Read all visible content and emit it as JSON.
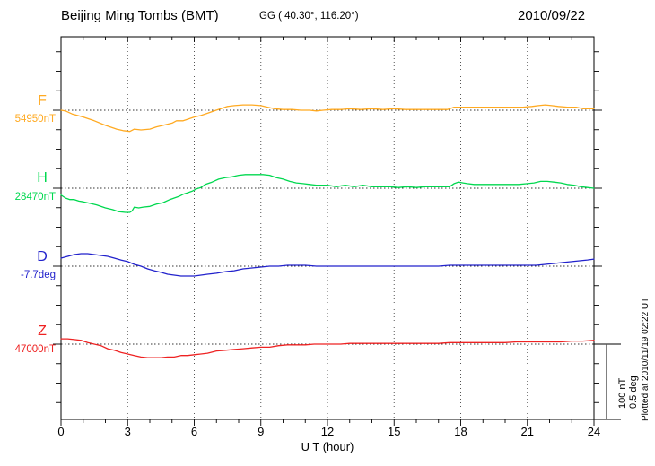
{
  "header": {
    "station_title": "Beijing Ming Tombs (BMT)",
    "coords": "GG ( 40.30°, 116.20°)",
    "date": "2010/09/22"
  },
  "axes": {
    "x_label": "U T (hour)",
    "x_ticks": [
      "0",
      "3",
      "6",
      "9",
      "12",
      "15",
      "18",
      "21",
      "24"
    ]
  },
  "scale_bar": {
    "line1": "100 nT",
    "line2": "0.5 deg"
  },
  "footer_note": "Plotted at 2010/11/19 02:22 UT",
  "chart_data": {
    "type": "line",
    "title": "Beijing Ming Tombs (BMT) magnetogram, 2010/09/22",
    "xlabel": "U T (hour)",
    "x_range": [
      0,
      24
    ],
    "x_tick_step_hours": 3,
    "grid": "dotted vertical at 3h steps, dotted horizontal baseline per channel",
    "division_scale": {
      "nT_per_division": 100,
      "deg_per_division": 0.5
    },
    "series": [
      {
        "name": "F",
        "unit": "nT",
        "base_value": 54950,
        "base_label": "54950nT",
        "color": "#FFAA22",
        "points": [
          [
            0,
            0
          ],
          [
            0.2,
            -1
          ],
          [
            0.5,
            -5
          ],
          [
            1,
            -9
          ],
          [
            1.5,
            -14
          ],
          [
            2,
            -20
          ],
          [
            2.5,
            -25
          ],
          [
            2.8,
            -27
          ],
          [
            3.1,
            -28
          ],
          [
            3.3,
            -25
          ],
          [
            3.6,
            -26
          ],
          [
            4,
            -25
          ],
          [
            4.3,
            -22
          ],
          [
            4.6,
            -20
          ],
          [
            5,
            -17
          ],
          [
            5.2,
            -14
          ],
          [
            5.5,
            -14
          ],
          [
            5.7,
            -12
          ],
          [
            6,
            -9
          ],
          [
            6.3,
            -7
          ],
          [
            6.6,
            -4
          ],
          [
            6.9,
            -1
          ],
          [
            7.2,
            2
          ],
          [
            7.5,
            5
          ],
          [
            7.8,
            6
          ],
          [
            8.2,
            7
          ],
          [
            8.6,
            7
          ],
          [
            9,
            6
          ],
          [
            9.3,
            4
          ],
          [
            9.6,
            2
          ],
          [
            10,
            1
          ],
          [
            10.4,
            1
          ],
          [
            10.8,
            0
          ],
          [
            11.2,
            0
          ],
          [
            11.5,
            -1
          ],
          [
            11.8,
            0
          ],
          [
            12.2,
            1
          ],
          [
            12.6,
            1
          ],
          [
            13,
            2
          ],
          [
            13.5,
            1
          ],
          [
            14,
            2
          ],
          [
            14.5,
            1
          ],
          [
            15,
            2
          ],
          [
            15.5,
            1
          ],
          [
            16,
            1
          ],
          [
            16.5,
            1
          ],
          [
            17,
            1
          ],
          [
            17.4,
            1
          ],
          [
            17.7,
            4
          ],
          [
            18,
            4
          ],
          [
            18.4,
            4
          ],
          [
            18.8,
            4
          ],
          [
            19.2,
            4
          ],
          [
            19.6,
            4
          ],
          [
            20,
            4
          ],
          [
            20.4,
            4
          ],
          [
            20.8,
            4
          ],
          [
            21.2,
            5
          ],
          [
            21.5,
            6
          ],
          [
            21.8,
            7
          ],
          [
            22.1,
            6
          ],
          [
            22.4,
            5
          ],
          [
            22.8,
            4
          ],
          [
            23.2,
            4
          ],
          [
            23.5,
            2
          ],
          [
            23.8,
            2
          ],
          [
            24,
            2
          ]
        ]
      },
      {
        "name": "H",
        "unit": "nT",
        "base_value": 28470,
        "base_label": "28470nT",
        "color": "#00D84F",
        "points": [
          [
            0,
            -9
          ],
          [
            0.2,
            -13
          ],
          [
            0.4,
            -15
          ],
          [
            0.6,
            -15
          ],
          [
            0.8,
            -17
          ],
          [
            1,
            -18
          ],
          [
            1.3,
            -20
          ],
          [
            1.6,
            -22
          ],
          [
            2,
            -26
          ],
          [
            2.3,
            -28
          ],
          [
            2.6,
            -31
          ],
          [
            2.9,
            -32
          ],
          [
            3.1,
            -32
          ],
          [
            3.2,
            -30
          ],
          [
            3.3,
            -25
          ],
          [
            3.5,
            -26
          ],
          [
            3.7,
            -25
          ],
          [
            4,
            -24
          ],
          [
            4.3,
            -21
          ],
          [
            4.6,
            -19
          ],
          [
            4.9,
            -15
          ],
          [
            5.1,
            -13
          ],
          [
            5.3,
            -11
          ],
          [
            5.5,
            -8
          ],
          [
            5.7,
            -6
          ],
          [
            5.9,
            -4
          ],
          [
            6.1,
            -1
          ],
          [
            6.3,
            1
          ],
          [
            6.5,
            5
          ],
          [
            6.8,
            8
          ],
          [
            7.1,
            12
          ],
          [
            7.4,
            14
          ],
          [
            7.7,
            15
          ],
          [
            8,
            17
          ],
          [
            8.3,
            18
          ],
          [
            8.7,
            18
          ],
          [
            9.1,
            18
          ],
          [
            9.4,
            17
          ],
          [
            9.7,
            14
          ],
          [
            10,
            12
          ],
          [
            10.3,
            9
          ],
          [
            10.6,
            7
          ],
          [
            10.9,
            6
          ],
          [
            11.2,
            5
          ],
          [
            11.5,
            4
          ],
          [
            12,
            4
          ],
          [
            12.4,
            2
          ],
          [
            12.8,
            4
          ],
          [
            13.2,
            2
          ],
          [
            13.6,
            4
          ],
          [
            14,
            2
          ],
          [
            14.4,
            2
          ],
          [
            14.8,
            2
          ],
          [
            15.2,
            1
          ],
          [
            15.6,
            2
          ],
          [
            16,
            1
          ],
          [
            16.4,
            2
          ],
          [
            16.8,
            2
          ],
          [
            17.2,
            2
          ],
          [
            17.5,
            2
          ],
          [
            17.7,
            6
          ],
          [
            17.9,
            8
          ],
          [
            18.1,
            7
          ],
          [
            18.3,
            6
          ],
          [
            18.6,
            5
          ],
          [
            19,
            5
          ],
          [
            19.4,
            5
          ],
          [
            19.8,
            5
          ],
          [
            20.2,
            5
          ],
          [
            20.6,
            5
          ],
          [
            21,
            6
          ],
          [
            21.3,
            7
          ],
          [
            21.6,
            9
          ],
          [
            21.9,
            9
          ],
          [
            22.2,
            8
          ],
          [
            22.5,
            7
          ],
          [
            22.8,
            5
          ],
          [
            23.1,
            4
          ],
          [
            23.4,
            2
          ],
          [
            23.7,
            1
          ],
          [
            24,
            0
          ]
        ]
      },
      {
        "name": "D",
        "unit": "deg",
        "base_value": -7.7,
        "base_label": "-7.7deg",
        "color": "#2222CC",
        "points": [
          [
            0,
            0.053
          ],
          [
            0.3,
            0.065
          ],
          [
            0.6,
            0.077
          ],
          [
            0.9,
            0.083
          ],
          [
            1.2,
            0.083
          ],
          [
            1.5,
            0.077
          ],
          [
            1.8,
            0.071
          ],
          [
            2.1,
            0.065
          ],
          [
            2.4,
            0.053
          ],
          [
            2.7,
            0.041
          ],
          [
            3,
            0.03
          ],
          [
            3.3,
            0.012
          ],
          [
            3.6,
            0
          ],
          [
            3.9,
            -0.018
          ],
          [
            4.2,
            -0.03
          ],
          [
            4.5,
            -0.041
          ],
          [
            4.8,
            -0.053
          ],
          [
            5.1,
            -0.059
          ],
          [
            5.4,
            -0.065
          ],
          [
            5.7,
            -0.065
          ],
          [
            6,
            -0.065
          ],
          [
            6.3,
            -0.059
          ],
          [
            6.6,
            -0.053
          ],
          [
            7,
            -0.047
          ],
          [
            7.4,
            -0.036
          ],
          [
            7.8,
            -0.03
          ],
          [
            8.2,
            -0.018
          ],
          [
            8.6,
            -0.012
          ],
          [
            9,
            -0.006
          ],
          [
            9.4,
            0
          ],
          [
            9.8,
            0
          ],
          [
            10.2,
            0.006
          ],
          [
            10.6,
            0.006
          ],
          [
            11,
            0.006
          ],
          [
            11.5,
            0
          ],
          [
            12,
            0
          ],
          [
            12.5,
            0
          ],
          [
            13,
            0
          ],
          [
            13.5,
            0
          ],
          [
            14,
            0
          ],
          [
            14.5,
            0
          ],
          [
            15,
            0
          ],
          [
            15.5,
            0
          ],
          [
            16,
            0
          ],
          [
            16.5,
            0
          ],
          [
            17,
            0
          ],
          [
            17.5,
            0.006
          ],
          [
            18,
            0.006
          ],
          [
            18.5,
            0.006
          ],
          [
            19,
            0.006
          ],
          [
            19.5,
            0.006
          ],
          [
            20,
            0.006
          ],
          [
            20.5,
            0.006
          ],
          [
            21,
            0.006
          ],
          [
            21.4,
            0.006
          ],
          [
            21.8,
            0.012
          ],
          [
            22.2,
            0.018
          ],
          [
            22.6,
            0.024
          ],
          [
            23,
            0.03
          ],
          [
            23.4,
            0.036
          ],
          [
            23.7,
            0.041
          ],
          [
            24,
            0.047
          ]
        ]
      },
      {
        "name": "Z",
        "unit": "nT",
        "base_value": 47000,
        "base_label": "47000nT",
        "color": "#EE2222",
        "points": [
          [
            0,
            7
          ],
          [
            0.3,
            7
          ],
          [
            0.6,
            6
          ],
          [
            0.9,
            5
          ],
          [
            1.2,
            2
          ],
          [
            1.5,
            0
          ],
          [
            1.8,
            -2
          ],
          [
            2.1,
            -6
          ],
          [
            2.4,
            -8
          ],
          [
            2.7,
            -11
          ],
          [
            3,
            -13
          ],
          [
            3.3,
            -15
          ],
          [
            3.6,
            -17
          ],
          [
            3.9,
            -18
          ],
          [
            4.2,
            -18
          ],
          [
            4.5,
            -18
          ],
          [
            4.8,
            -17
          ],
          [
            5.1,
            -17
          ],
          [
            5.4,
            -15
          ],
          [
            5.7,
            -15
          ],
          [
            6,
            -14
          ],
          [
            6.3,
            -13
          ],
          [
            6.6,
            -12
          ],
          [
            7,
            -9
          ],
          [
            7.4,
            -8
          ],
          [
            7.8,
            -7
          ],
          [
            8.2,
            -6
          ],
          [
            8.6,
            -5
          ],
          [
            9,
            -4
          ],
          [
            9.4,
            -4
          ],
          [
            9.8,
            -2
          ],
          [
            10.2,
            -1
          ],
          [
            10.6,
            -1
          ],
          [
            11,
            -1
          ],
          [
            11.4,
            0
          ],
          [
            11.8,
            0
          ],
          [
            12.2,
            0
          ],
          [
            12.6,
            0
          ],
          [
            13,
            1
          ],
          [
            13.5,
            1
          ],
          [
            14,
            1
          ],
          [
            14.5,
            1
          ],
          [
            15,
            1
          ],
          [
            15.5,
            1
          ],
          [
            16,
            1
          ],
          [
            16.5,
            1
          ],
          [
            17,
            1
          ],
          [
            17.5,
            2
          ],
          [
            18,
            2
          ],
          [
            18.5,
            2
          ],
          [
            19,
            2
          ],
          [
            19.5,
            2
          ],
          [
            20,
            2
          ],
          [
            20.5,
            3
          ],
          [
            21,
            3
          ],
          [
            21.5,
            3
          ],
          [
            22,
            3
          ],
          [
            22.5,
            3
          ],
          [
            23,
            4
          ],
          [
            23.5,
            4
          ],
          [
            24,
            5
          ]
        ]
      }
    ]
  }
}
